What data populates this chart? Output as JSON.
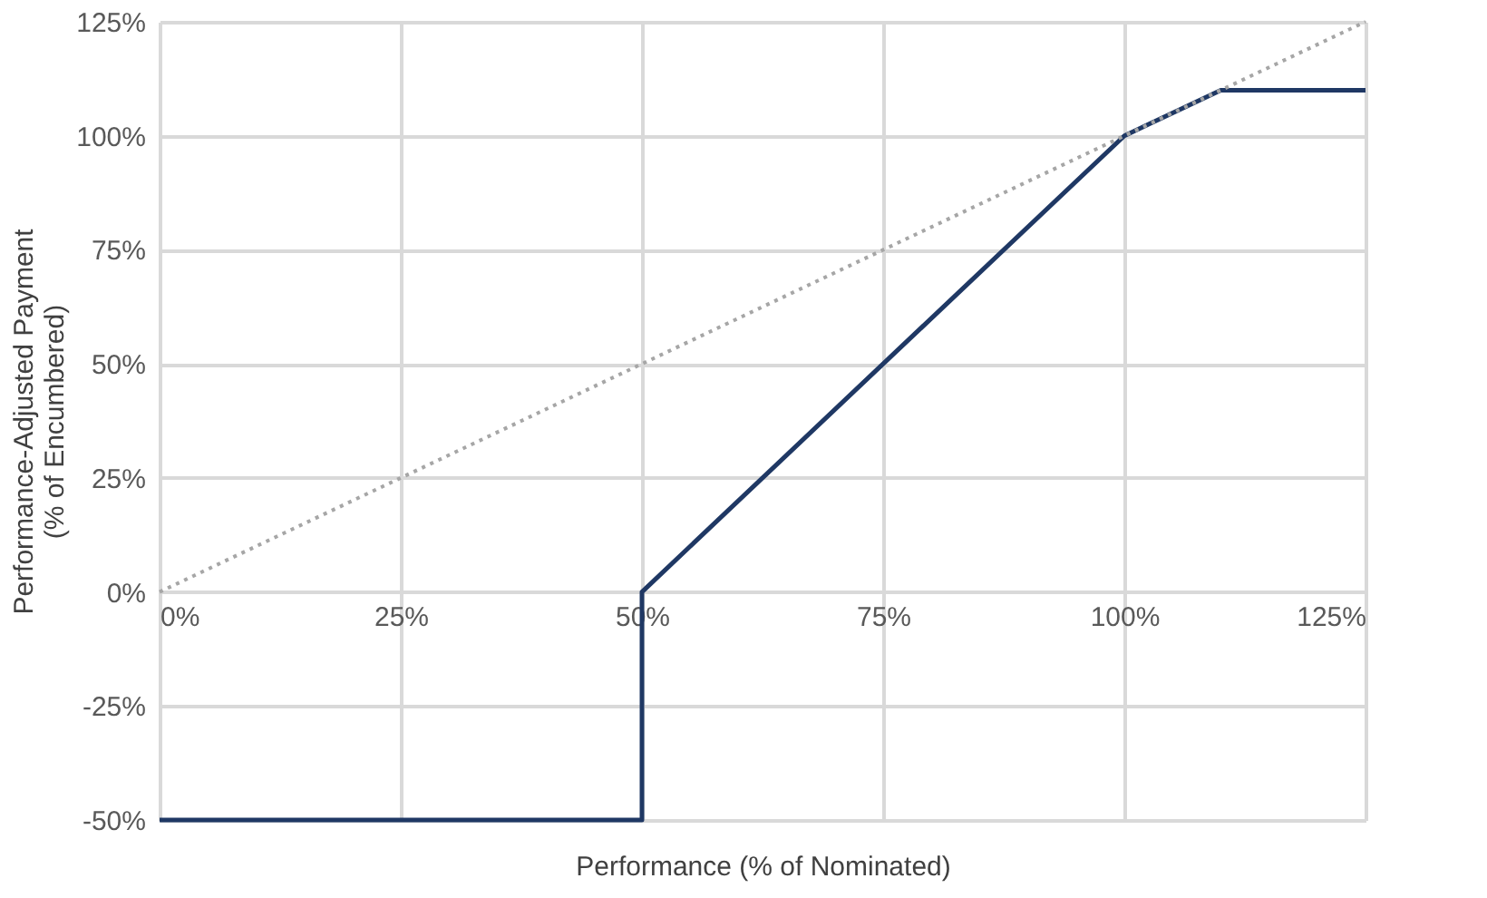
{
  "chart_data": {
    "type": "line",
    "xlabel": "Performance (% of Nominated)",
    "ylabel": "Performance-Adjusted Payment\n(% of Encumbered)",
    "series": [
      {
        "color": "#1f3864",
        "x": [
          0,
          50,
          50,
          100,
          110,
          125
        ],
        "values": [
          -50,
          -50,
          0,
          100,
          110,
          110
        ],
        "line_style": "solid"
      },
      {
        "color": "#a6a6a6",
        "x": [
          0,
          125
        ],
        "values": [
          0,
          125
        ],
        "line_style": "dotted"
      }
    ],
    "xlim": [
      0,
      125
    ],
    "ylim": [
      -50,
      125
    ],
    "xticks": [
      {
        "value": 0,
        "label": "0%"
      },
      {
        "value": 25,
        "label": "25%"
      },
      {
        "value": 50,
        "label": "50%"
      },
      {
        "value": 75,
        "label": "75%"
      },
      {
        "value": 100,
        "label": "100%"
      },
      {
        "value": 125,
        "label": "125%"
      }
    ],
    "yticks": [
      {
        "value": -50,
        "label": "-50%"
      },
      {
        "value": -25,
        "label": "-25%"
      },
      {
        "value": 0,
        "label": "0%"
      },
      {
        "value": 25,
        "label": "25%"
      },
      {
        "value": 50,
        "label": "50%"
      },
      {
        "value": 75,
        "label": "75%"
      },
      {
        "value": 100,
        "label": "100%"
      },
      {
        "value": 125,
        "label": "125%"
      }
    ],
    "grid": true,
    "marker": "none"
  }
}
